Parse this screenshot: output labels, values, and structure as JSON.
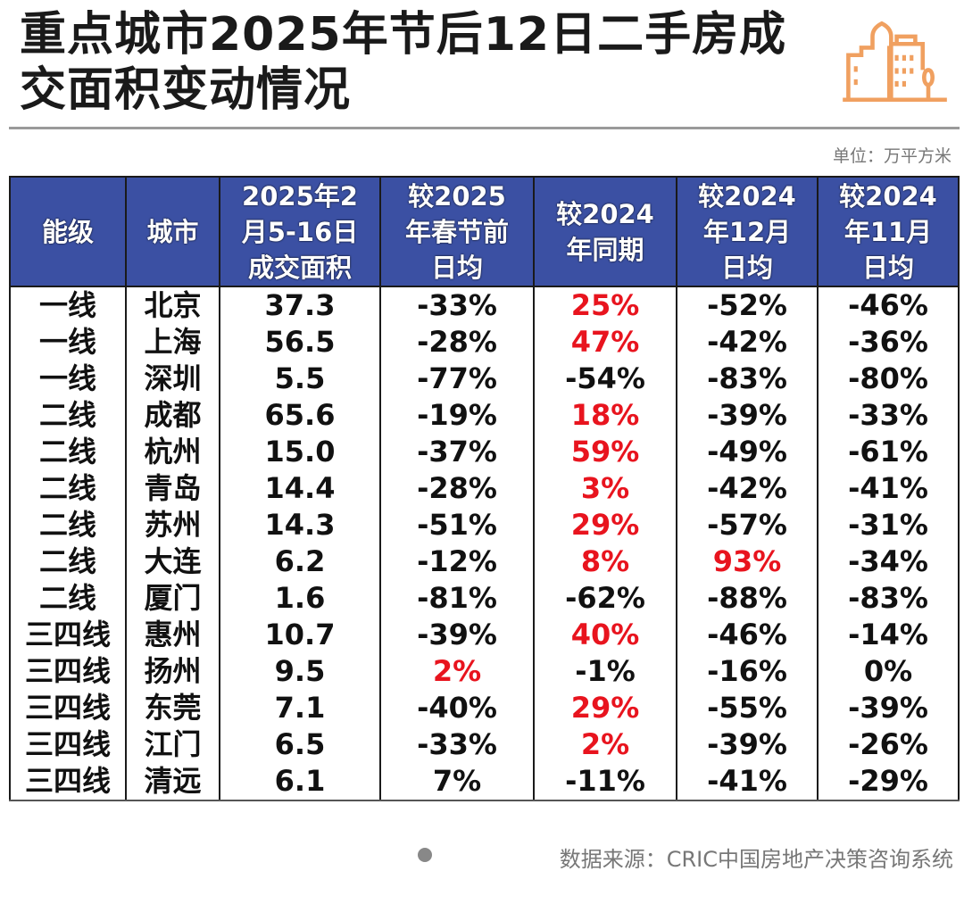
{
  "title": "重点城市2025年节后12日二手房成交面积变动情况",
  "unit": "单位：万平方米",
  "source": "数据来源：CRIC中国房地产决策咨询系统",
  "colors": {
    "header": "#3b50a3",
    "highlight": "#e8141e",
    "logo": "#f0a060"
  },
  "logo_icon": "city-buildings-icon",
  "chart_data": {
    "type": "table",
    "columns": [
      "能级",
      "城市",
      "2025年2月5-16日成交面积",
      "较2025年春节前日均",
      "较2024年同期",
      "较2024年12月日均",
      "较2024年11月日均"
    ],
    "rows": [
      [
        "一线",
        "北京",
        "37.3",
        "-33%",
        "25%",
        "-52%",
        "-46%"
      ],
      [
        "一线",
        "上海",
        "56.5",
        "-28%",
        "47%",
        "-42%",
        "-36%"
      ],
      [
        "一线",
        "深圳",
        "5.5",
        "-77%",
        "-54%",
        "-83%",
        "-80%"
      ],
      [
        "二线",
        "成都",
        "65.6",
        "-19%",
        "18%",
        "-39%",
        "-33%"
      ],
      [
        "二线",
        "杭州",
        "15.0",
        "-37%",
        "59%",
        "-49%",
        "-61%"
      ],
      [
        "二线",
        "青岛",
        "14.4",
        "-28%",
        "3%",
        "-42%",
        "-41%"
      ],
      [
        "二线",
        "苏州",
        "14.3",
        "-51%",
        "29%",
        "-57%",
        "-31%"
      ],
      [
        "二线",
        "大连",
        "6.2",
        "-12%",
        "8%",
        "93%",
        "-34%"
      ],
      [
        "二线",
        "厦门",
        "1.6",
        "-81%",
        "-62%",
        "-88%",
        "-83%"
      ],
      [
        "三四线",
        "惠州",
        "10.7",
        "-39%",
        "40%",
        "-46%",
        "-14%"
      ],
      [
        "三四线",
        "扬州",
        "9.5",
        "2%",
        "-1%",
        "-16%",
        "0%"
      ],
      [
        "三四线",
        "东莞",
        "7.1",
        "-40%",
        "29%",
        "-55%",
        "-39%"
      ],
      [
        "三四线",
        "江门",
        "6.5",
        "-33%",
        "2%",
        "-39%",
        "-26%"
      ],
      [
        "三四线",
        "清远",
        "6.1",
        "7%",
        "-11%",
        "-41%",
        "-29%"
      ]
    ],
    "highlighted_red": [
      [
        0,
        4
      ],
      [
        1,
        4
      ],
      [
        3,
        4
      ],
      [
        4,
        4
      ],
      [
        5,
        4
      ],
      [
        6,
        4
      ],
      [
        7,
        4
      ],
      [
        7,
        5
      ],
      [
        9,
        4
      ],
      [
        10,
        3
      ],
      [
        11,
        4
      ],
      [
        12,
        4
      ]
    ]
  }
}
